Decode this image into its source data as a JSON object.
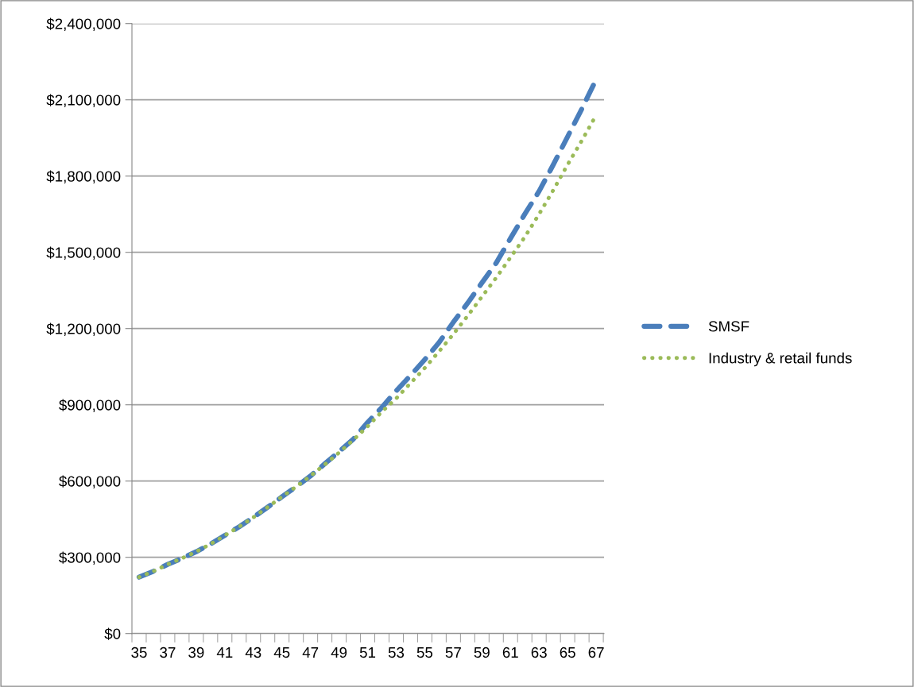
{
  "chart_data": {
    "type": "line",
    "categories": [
      "35",
      null,
      "37",
      null,
      "39",
      null,
      "41",
      null,
      "43",
      null,
      "45",
      null,
      "47",
      null,
      "49",
      null,
      "51",
      null,
      "53",
      null,
      "55",
      null,
      "57",
      null,
      "59",
      null,
      "61",
      null,
      "63",
      null,
      "65",
      null,
      "67"
    ],
    "series": [
      {
        "name": "SMSF",
        "color": "#4a7ebb",
        "line_style": "dashed",
        "values": [
          222000,
          245000,
          272000,
          296000,
          322000,
          352000,
          386000,
          420000,
          457000,
          497000,
          538000,
          578000,
          620000,
          668000,
          716000,
          765000,
          831000,
          890000,
          955000,
          1015000,
          1078000,
          1145000,
          1225000,
          1300000,
          1380000,
          1458000,
          1555000,
          1650000,
          1740000,
          1845000,
          1955000,
          2065000,
          2180000
        ]
      },
      {
        "name": "Industry & retail funds",
        "color": "#9bbb59",
        "line_style": "dotted",
        "values": [
          222000,
          245000,
          272000,
          296000,
          322000,
          352000,
          386000,
          420000,
          457000,
          497000,
          538000,
          578000,
          620000,
          665000,
          712000,
          762000,
          815000,
          873000,
          925000,
          985000,
          1045000,
          1110000,
          1178000,
          1250000,
          1325000,
          1400000,
          1480000,
          1560000,
          1650000,
          1745000,
          1845000,
          1940000,
          2040000
        ]
      }
    ],
    "ylim": [
      0,
      2400000
    ],
    "yticks": [
      {
        "value": 0,
        "label": "$0"
      },
      {
        "value": 300000,
        "label": "$300,000"
      },
      {
        "value": 600000,
        "label": "$600,000"
      },
      {
        "value": 900000,
        "label": "$900,000"
      },
      {
        "value": 1200000,
        "label": "$1,200,000"
      },
      {
        "value": 1500000,
        "label": "$1,500,000"
      },
      {
        "value": 1800000,
        "label": "$1,800,000"
      },
      {
        "value": 2100000,
        "label": "$2,100,000"
      },
      {
        "value": 2400000,
        "label": "$2,400,000"
      }
    ],
    "grid": "y",
    "legend": "right",
    "marker": "none"
  }
}
